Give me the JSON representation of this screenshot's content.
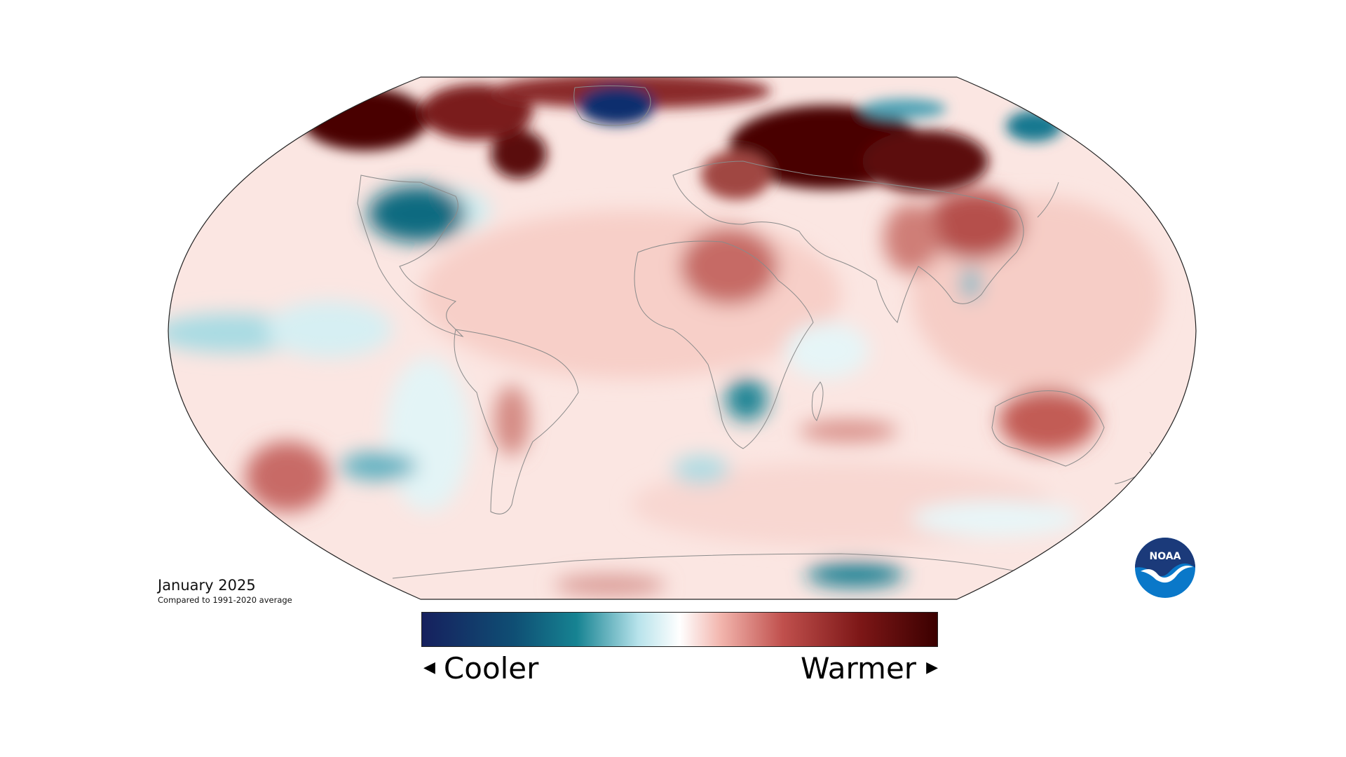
{
  "map": {
    "title": "January 2025",
    "subtitle": "Compared to 1991-2020 average",
    "projection": "Robinson",
    "type": "temperature anomaly map"
  },
  "legend": {
    "left_label": "Cooler",
    "right_label": "Warmer",
    "left_arrow": "◀",
    "right_arrow": "▶",
    "scale_colors": [
      "#16205e",
      "#0f5a7a",
      "#168392",
      "#b8e3eb",
      "#ffffff",
      "#f2b5ad",
      "#c0504d",
      "#8b1a1a",
      "#3b0000"
    ]
  },
  "logo": {
    "text": "NOAA",
    "icon": "noaa-logo-icon",
    "colors": [
      "#1b3a7a",
      "#0a78c9",
      "#ffffff"
    ]
  },
  "colors": {
    "warm_strong": "#4a0000",
    "warm_mid": "#a8403c",
    "warm_light": "#f4c8c0",
    "neutral": "#ffffff",
    "cool_light": "#bfe6ec",
    "cool_mid": "#1a7f92",
    "cool_strong": "#0f2f6e",
    "coastline": "#8a8a8a"
  }
}
